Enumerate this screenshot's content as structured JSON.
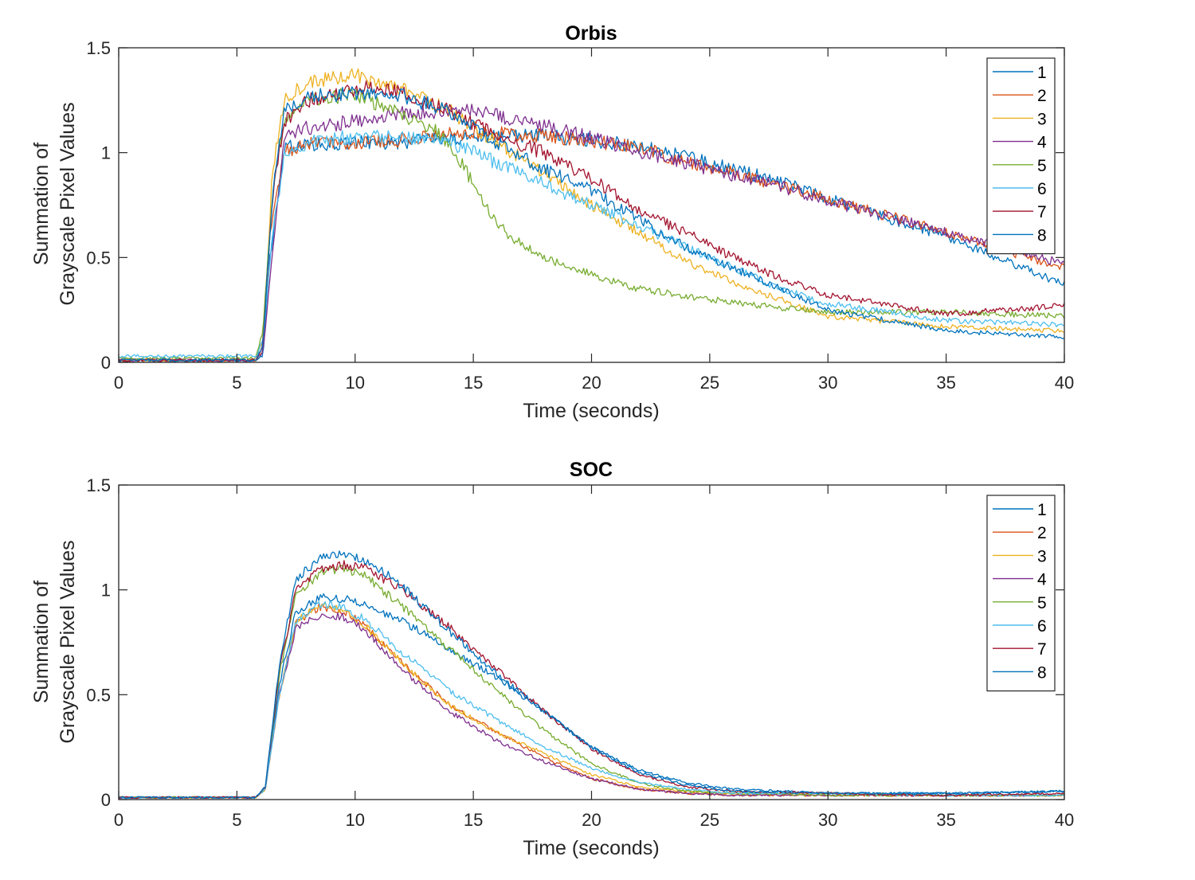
{
  "chart_data": [
    {
      "type": "line",
      "title": "Orbis",
      "xlabel": "Time (seconds)",
      "ylabel": [
        "Summation of",
        "Grayscale Pixel Values"
      ],
      "xlim": [
        0,
        40
      ],
      "ylim": [
        0,
        1.5
      ],
      "xticks": [
        0,
        5,
        10,
        15,
        20,
        25,
        30,
        35,
        40
      ],
      "xtick_labels": [
        "0",
        "5",
        "10",
        "15",
        "20",
        "25",
        "30",
        "35",
        "40"
      ],
      "yticks": [
        0,
        0.5,
        1,
        1.5
      ],
      "ytick_labels": [
        "0",
        "0.5",
        "1",
        "1.5"
      ],
      "grid": false,
      "legend_position": "top-right",
      "series": [
        {
          "name": "1",
          "color": "#0072BD",
          "x": [
            0,
            5.8,
            6.1,
            6.4,
            7,
            8,
            10,
            12,
            15,
            18,
            20,
            22,
            25,
            28,
            30,
            35,
            40
          ],
          "y": [
            0.01,
            0.01,
            0.03,
            0.5,
            1.02,
            1.04,
            1.05,
            1.05,
            1.08,
            1.08,
            1.06,
            1.03,
            0.95,
            0.86,
            0.78,
            0.6,
            0.37
          ]
        },
        {
          "name": "2",
          "color": "#D95319",
          "x": [
            0,
            5.8,
            6.1,
            6.4,
            7,
            8,
            10,
            12,
            15,
            18,
            20,
            22,
            25,
            28,
            30,
            35,
            40
          ],
          "y": [
            0.01,
            0.01,
            0.05,
            0.6,
            1.01,
            1.04,
            1.05,
            1.06,
            1.1,
            1.08,
            1.06,
            1.02,
            0.93,
            0.84,
            0.78,
            0.62,
            0.45
          ]
        },
        {
          "name": "3",
          "color": "#EDB120",
          "x": [
            0,
            5.8,
            6.1,
            6.5,
            7,
            8,
            10,
            12,
            14,
            16,
            18,
            20,
            22,
            24,
            26,
            28,
            30,
            35,
            40
          ],
          "y": [
            0.01,
            0.01,
            0.1,
            0.9,
            1.25,
            1.34,
            1.37,
            1.3,
            1.2,
            1.05,
            0.9,
            0.75,
            0.62,
            0.48,
            0.38,
            0.3,
            0.22,
            0.17,
            0.15
          ]
        },
        {
          "name": "4",
          "color": "#7E2F8E",
          "x": [
            0,
            5.8,
            6.1,
            6.5,
            7,
            8,
            10,
            12,
            15,
            18,
            20,
            22,
            25,
            28,
            30,
            35,
            40
          ],
          "y": [
            0.01,
            0.01,
            0.05,
            0.5,
            1.08,
            1.12,
            1.15,
            1.19,
            1.2,
            1.13,
            1.07,
            1.01,
            0.92,
            0.84,
            0.77,
            0.62,
            0.47
          ]
        },
        {
          "name": "5",
          "color": "#77AC30",
          "x": [
            0,
            5.8,
            6.1,
            6.5,
            7,
            8,
            10,
            12,
            13.5,
            14.5,
            15.5,
            16.5,
            18,
            20,
            22,
            25,
            28,
            30,
            33,
            35,
            40
          ],
          "y": [
            0.02,
            0.02,
            0.15,
            0.8,
            1.15,
            1.25,
            1.28,
            1.18,
            1.1,
            0.95,
            0.75,
            0.6,
            0.5,
            0.42,
            0.35,
            0.3,
            0.26,
            0.24,
            0.24,
            0.24,
            0.22
          ]
        },
        {
          "name": "6",
          "color": "#4DBEEE",
          "x": [
            0,
            5.8,
            6.1,
            6.5,
            7,
            8,
            10,
            12,
            14,
            16,
            18,
            20,
            22,
            24,
            26,
            28,
            30,
            35,
            40
          ],
          "y": [
            0.03,
            0.03,
            0.1,
            0.6,
            0.98,
            1.05,
            1.08,
            1.08,
            1.05,
            0.95,
            0.85,
            0.75,
            0.65,
            0.55,
            0.45,
            0.35,
            0.28,
            0.2,
            0.18
          ]
        },
        {
          "name": "7",
          "color": "#A2142F",
          "x": [
            0,
            5.8,
            6.1,
            6.5,
            7,
            8,
            10,
            11,
            12,
            14,
            16,
            18,
            20,
            22,
            24,
            26,
            28,
            30,
            35,
            40
          ],
          "y": [
            0.01,
            0.01,
            0.08,
            0.8,
            1.15,
            1.25,
            1.3,
            1.32,
            1.28,
            1.2,
            1.08,
            1.0,
            0.88,
            0.72,
            0.62,
            0.5,
            0.4,
            0.32,
            0.23,
            0.27
          ]
        },
        {
          "name": "8",
          "color": "#0072BD",
          "x": [
            0,
            5.8,
            6.1,
            6.5,
            7,
            8,
            10,
            12,
            14,
            16,
            18,
            20,
            22,
            24,
            26,
            28,
            30,
            35,
            40
          ],
          "y": [
            0.01,
            0.01,
            0.08,
            0.8,
            1.2,
            1.27,
            1.28,
            1.27,
            1.2,
            1.05,
            0.92,
            0.82,
            0.68,
            0.55,
            0.45,
            0.35,
            0.25,
            0.15,
            0.12
          ]
        }
      ]
    },
    {
      "type": "line",
      "title": "SOC",
      "xlabel": "Time (seconds)",
      "ylabel": [
        "Summation of",
        "Grayscale Pixel Values"
      ],
      "xlim": [
        0,
        40
      ],
      "ylim": [
        0,
        1.5
      ],
      "xticks": [
        0,
        5,
        10,
        15,
        20,
        25,
        30,
        35,
        40
      ],
      "xtick_labels": [
        "0",
        "5",
        "10",
        "15",
        "20",
        "25",
        "30",
        "35",
        "40"
      ],
      "yticks": [
        0,
        0.5,
        1,
        1.5
      ],
      "ytick_labels": [
        "0",
        "0.5",
        "1",
        "1.5"
      ],
      "grid": false,
      "legend_position": "top-right",
      "series": [
        {
          "name": "1",
          "color": "#0072BD",
          "x": [
            0,
            5.8,
            6.2,
            6.8,
            7.5,
            8.5,
            9.5,
            10.5,
            12,
            14,
            16,
            18,
            20,
            22,
            24,
            26,
            30,
            35,
            40
          ],
          "y": [
            0.01,
            0.01,
            0.06,
            0.55,
            0.9,
            0.96,
            0.96,
            0.93,
            0.85,
            0.72,
            0.58,
            0.42,
            0.25,
            0.14,
            0.08,
            0.05,
            0.03,
            0.03,
            0.04
          ]
        },
        {
          "name": "2",
          "color": "#D95319",
          "x": [
            0,
            5.8,
            6.2,
            6.8,
            7.5,
            8.5,
            9.5,
            10.5,
            12,
            14,
            16,
            18,
            20,
            22,
            24,
            26,
            30,
            35,
            40
          ],
          "y": [
            0.01,
            0.01,
            0.05,
            0.5,
            0.85,
            0.92,
            0.9,
            0.82,
            0.65,
            0.45,
            0.32,
            0.2,
            0.1,
            0.05,
            0.03,
            0.02,
            0.02,
            0.02,
            0.02
          ]
        },
        {
          "name": "3",
          "color": "#EDB120",
          "x": [
            0,
            5.8,
            6.2,
            6.8,
            7.5,
            8.5,
            9.5,
            10.5,
            12,
            14,
            16,
            18,
            20,
            22,
            24,
            26,
            30,
            35,
            40
          ],
          "y": [
            0.01,
            0.01,
            0.05,
            0.5,
            0.85,
            0.93,
            0.9,
            0.82,
            0.65,
            0.45,
            0.32,
            0.22,
            0.12,
            0.06,
            0.04,
            0.03,
            0.03,
            0.02,
            0.02
          ]
        },
        {
          "name": "4",
          "color": "#7E2F8E",
          "x": [
            0,
            5.8,
            6.2,
            6.8,
            7.5,
            8.5,
            9.5,
            10.5,
            12,
            14,
            16,
            18,
            20,
            22,
            24,
            26,
            30,
            35,
            40
          ],
          "y": [
            0.01,
            0.01,
            0.05,
            0.5,
            0.82,
            0.88,
            0.87,
            0.8,
            0.62,
            0.42,
            0.28,
            0.18,
            0.1,
            0.05,
            0.03,
            0.02,
            0.02,
            0.02,
            0.02
          ]
        },
        {
          "name": "5",
          "color": "#77AC30",
          "x": [
            0,
            5.8,
            6.2,
            6.8,
            7.5,
            8.5,
            9.5,
            10.5,
            12,
            14,
            16,
            18,
            20,
            22,
            24,
            26,
            30,
            35,
            40
          ],
          "y": [
            0.01,
            0.01,
            0.06,
            0.6,
            0.98,
            1.08,
            1.1,
            1.06,
            0.92,
            0.72,
            0.52,
            0.33,
            0.17,
            0.08,
            0.04,
            0.03,
            0.02,
            0.02,
            0.02
          ]
        },
        {
          "name": "6",
          "color": "#4DBEEE",
          "x": [
            0,
            5.8,
            6.2,
            6.8,
            7.5,
            8.5,
            9.5,
            10.5,
            12,
            14,
            16,
            18,
            20,
            22,
            24,
            26,
            30,
            35,
            40
          ],
          "y": [
            0.01,
            0.01,
            0.05,
            0.5,
            0.85,
            0.93,
            0.92,
            0.85,
            0.7,
            0.52,
            0.38,
            0.25,
            0.15,
            0.08,
            0.05,
            0.03,
            0.03,
            0.02,
            0.02
          ]
        },
        {
          "name": "7",
          "color": "#A2142F",
          "x": [
            0,
            5.8,
            6.2,
            6.8,
            7.5,
            8.5,
            9.5,
            10.5,
            12,
            14,
            16,
            18,
            20,
            22,
            24,
            26,
            30,
            35,
            40
          ],
          "y": [
            0.01,
            0.01,
            0.06,
            0.62,
            1.0,
            1.1,
            1.12,
            1.1,
            1.0,
            0.82,
            0.62,
            0.42,
            0.24,
            0.12,
            0.06,
            0.04,
            0.03,
            0.02,
            0.03
          ]
        },
        {
          "name": "8",
          "color": "#0072BD",
          "x": [
            0,
            5.8,
            6.2,
            6.8,
            7.5,
            8.5,
            9.5,
            10.5,
            12,
            14,
            16,
            18,
            20,
            22,
            24,
            26,
            30,
            35,
            40
          ],
          "y": [
            0.01,
            0.01,
            0.06,
            0.65,
            1.05,
            1.15,
            1.17,
            1.14,
            1.02,
            0.8,
            0.6,
            0.42,
            0.25,
            0.13,
            0.07,
            0.04,
            0.03,
            0.03,
            0.04
          ]
        }
      ]
    }
  ]
}
